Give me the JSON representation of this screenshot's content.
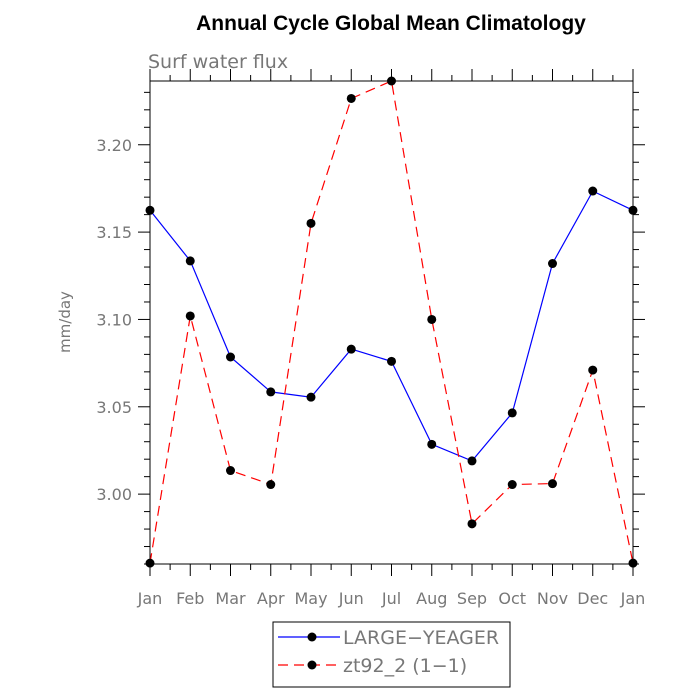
{
  "chart_data": {
    "type": "line",
    "title": "Annual Cycle Global Mean Climatology",
    "subtitle": "Surf water flux",
    "ylabel": "mm/day",
    "xlabel": "",
    "categories": [
      "Jan",
      "Feb",
      "Mar",
      "Apr",
      "May",
      "Jun",
      "Jul",
      "Aug",
      "Sep",
      "Oct",
      "Nov",
      "Dec",
      "Jan"
    ],
    "ylim": [
      2.96,
      3.2365
    ],
    "yticks": [
      3.0,
      3.05,
      3.1,
      3.15,
      3.2
    ],
    "ytick_labels": [
      "3.00",
      "3.05",
      "3.10",
      "3.15",
      "3.20"
    ],
    "grid": false,
    "legend_position": "bottom-center",
    "series": [
      {
        "name": "LARGE−YEAGER",
        "color": "#0000ff",
        "dash": "solid",
        "values": [
          3.1625,
          3.1335,
          3.0785,
          3.0585,
          3.0555,
          3.083,
          3.076,
          3.0285,
          3.019,
          3.0465,
          3.132,
          3.1735,
          3.1625
        ]
      },
      {
        "name": "zt92_2 (1−1)",
        "color": "#ff0000",
        "dash": "dashed",
        "values": [
          2.9605,
          3.102,
          3.0135,
          3.0055,
          3.155,
          3.2265,
          3.2365,
          3.1,
          2.983,
          3.0055,
          3.006,
          3.071,
          2.9605
        ]
      }
    ]
  }
}
